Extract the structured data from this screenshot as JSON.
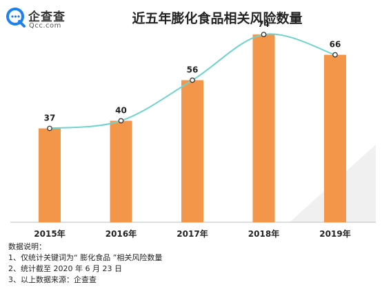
{
  "brand": {
    "name": "企查查",
    "domain": "Qcc.com",
    "icon": "magnifier-chat-icon",
    "color": "#1b82f0"
  },
  "colors": {
    "bar": "#f4964a",
    "curve": "#6dd3cf",
    "shadow": "#ececec"
  },
  "chart_data": {
    "type": "bar",
    "title": "近五年膨化食品相关风险数量",
    "categories": [
      "2015年",
      "2016年",
      "2017年",
      "2018年",
      "2019年"
    ],
    "values": [
      37,
      40,
      56,
      74,
      66
    ],
    "data_labels": [
      "37",
      "40",
      "56",
      "74",
      "66"
    ],
    "ylim": [
      0,
      80
    ],
    "overlay": "smooth-trend-line",
    "grid": false,
    "legend": "none"
  },
  "notes": {
    "heading": "数据说明：",
    "lines": [
      "1、仅统计关键词为“ 膨化食品 ”相关风险数量",
      "2、统计截至 2020 年 6 月 23 日",
      "3、以上数据来源：企查查"
    ]
  }
}
